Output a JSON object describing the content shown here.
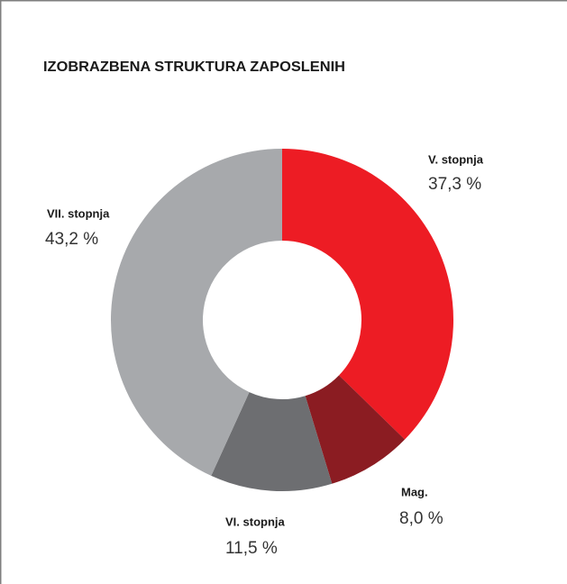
{
  "chart_data": {
    "type": "donut",
    "title": "IZOBRAZBENA STRUKTURA ZAPOSLENIH",
    "categories": [
      "V. stopnja",
      "Mag.",
      "VI. stopnja",
      "VII. stopnja"
    ],
    "values": [
      37.3,
      8.0,
      11.5,
      43.2
    ],
    "value_labels": [
      "37,3 %",
      "8,0 %",
      "11,5 %",
      "43,2 %"
    ],
    "colors": [
      "#ed1c24",
      "#8b1c22",
      "#6d6e71",
      "#a7a9ac"
    ]
  }
}
